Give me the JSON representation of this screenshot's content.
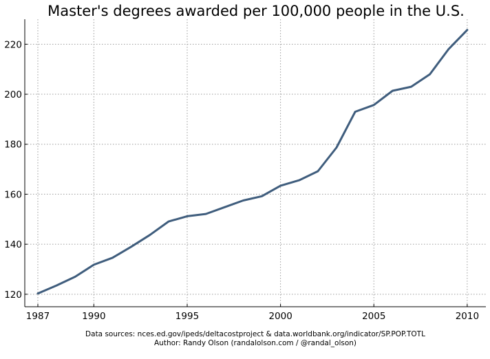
{
  "chart_data": {
    "type": "line",
    "title": "Master's degrees awarded per 100,000 people in the U.S.",
    "xlabel": "",
    "ylabel": "",
    "xlim": [
      1986.3,
      2011
    ],
    "ylim": [
      115,
      230
    ],
    "x_ticks": [
      "1987",
      "1990",
      "1995",
      "2000",
      "2005",
      "2010"
    ],
    "y_ticks": [
      "120",
      "140",
      "160",
      "180",
      "200",
      "220"
    ],
    "grid": true,
    "series": [
      {
        "color": "#3f5d7d",
        "x": [
          1987,
          1988,
          1989,
          1990,
          1991,
          1992,
          1993,
          1994,
          1995,
          1996,
          1997,
          1998,
          1999,
          2000,
          2001,
          2002,
          2003,
          2004,
          2005,
          2006,
          2007,
          2008,
          2009,
          2010
        ],
        "y": [
          120.3,
          123.5,
          127.0,
          131.8,
          134.6,
          139.0,
          143.7,
          149.1,
          151.2,
          152.1,
          154.8,
          157.5,
          159.2,
          163.4,
          165.6,
          169.2,
          178.7,
          193.0,
          195.7,
          201.4,
          203.0,
          208.0,
          218.0,
          225.7
        ]
      }
    ],
    "footnote_sources": "Data sources: nces.ed.gov/ipeds/deltacostproject & data.worldbank.org/indicator/SP.POP.TOTL",
    "footnote_author": "Author: Randy Olson (randalolson.com / @randal_olson)"
  }
}
